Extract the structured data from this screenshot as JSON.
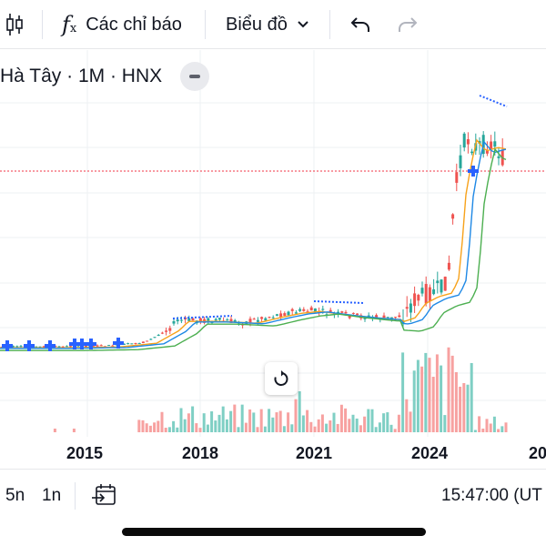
{
  "toolbar": {
    "indicators_label": "Các chỉ báo",
    "chart_type_label": "Biểu đồ"
  },
  "legend": {
    "title": "Hà Tây · 1M · HNX"
  },
  "chart_data": {
    "type": "candlestick",
    "title": "Hà Tây · 1M · HNX",
    "x_tick_labels": [
      "2015",
      "2018",
      "2021",
      "2024",
      "20"
    ],
    "price_line_color": "#f23645",
    "volume_up_color": "#26a69a",
    "volume_down_color": "#ef5350",
    "moving_average_colors": [
      "#f7a21b",
      "#4caf50",
      "#1e88e5"
    ],
    "grid": true
  },
  "bottombar": {
    "range_5y": "5n",
    "range_1y": "1n",
    "clock": "15:47:00 (UT"
  },
  "colors": {
    "up": "#26a69a",
    "down": "#ef5350",
    "accent_blue": "#2962ff"
  }
}
